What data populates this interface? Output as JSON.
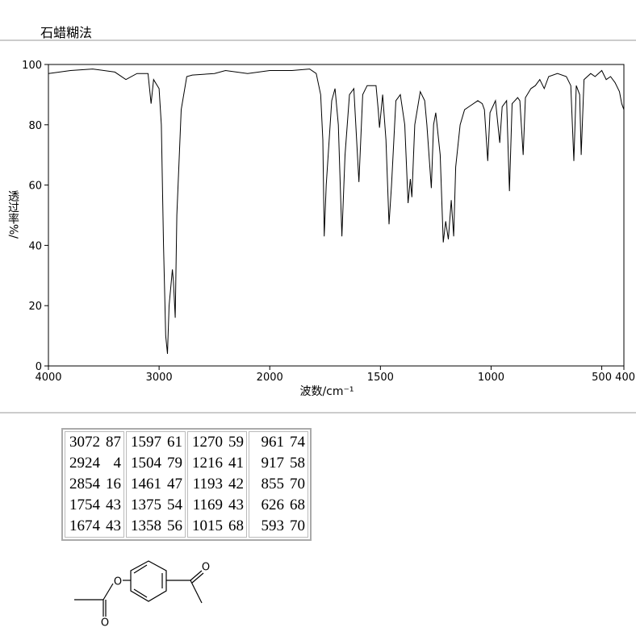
{
  "header": {
    "title": "石蜡糊法"
  },
  "chart_data": {
    "type": "line",
    "x_label": "波数/cm⁻¹",
    "y_label": "透过率%/",
    "xlim": [
      4000,
      400
    ],
    "xticks": [
      4000,
      3000,
      2000,
      1500,
      1000,
      500,
      400
    ],
    "x_scale_change": 2000,
    "ylim": [
      0,
      100
    ],
    "yticks": [
      0,
      20,
      40,
      60,
      80,
      100
    ],
    "x": [
      4000,
      3800,
      3600,
      3400,
      3300,
      3200,
      3100,
      3072,
      3050,
      3000,
      2980,
      2960,
      2940,
      2924,
      2910,
      2880,
      2870,
      2854,
      2840,
      2800,
      2750,
      2700,
      2500,
      2400,
      2200,
      2000,
      1900,
      1820,
      1790,
      1770,
      1760,
      1754,
      1745,
      1720,
      1705,
      1690,
      1674,
      1660,
      1640,
      1620,
      1597,
      1580,
      1560,
      1520,
      1510,
      1504,
      1490,
      1475,
      1461,
      1450,
      1430,
      1410,
      1390,
      1375,
      1365,
      1358,
      1345,
      1320,
      1300,
      1290,
      1270,
      1260,
      1250,
      1230,
      1216,
      1205,
      1193,
      1180,
      1169,
      1160,
      1140,
      1120,
      1100,
      1060,
      1040,
      1030,
      1015,
      1005,
      980,
      961,
      950,
      930,
      917,
      905,
      880,
      870,
      855,
      845,
      820,
      800,
      780,
      760,
      740,
      700,
      660,
      640,
      626,
      615,
      600,
      593,
      580,
      550,
      530,
      500,
      480,
      460,
      440,
      420,
      410,
      400
    ],
    "series": [
      {
        "color": "#000000",
        "values": [
          97,
          98,
          98.5,
          97.5,
          95,
          97,
          97,
          87,
          95,
          92,
          80,
          40,
          10,
          4,
          20,
          32,
          28,
          16,
          50,
          85,
          96,
          96.5,
          97,
          98,
          97,
          98,
          98,
          98.5,
          97,
          90,
          75,
          43,
          60,
          88,
          92,
          80,
          43,
          70,
          90,
          92,
          61,
          90,
          93,
          93,
          85,
          79,
          90,
          75,
          47,
          60,
          88,
          90,
          80,
          54,
          62,
          56,
          80,
          91,
          88,
          80,
          59,
          80,
          84,
          70,
          41,
          48,
          42,
          55,
          43,
          66,
          80,
          85,
          86,
          88,
          87,
          85,
          68,
          84,
          88,
          74,
          86,
          88,
          58,
          87,
          89,
          88,
          70,
          89,
          92,
          93,
          95,
          92,
          96,
          97,
          96,
          93,
          68,
          93,
          90,
          70,
          95,
          97,
          96,
          98,
          95,
          96,
          94,
          91,
          87,
          85
        ]
      }
    ]
  },
  "table": {
    "rows": [
      [
        [
          3072,
          87
        ],
        [
          1597,
          61
        ],
        [
          1270,
          59
        ],
        [
          961,
          74
        ]
      ],
      [
        [
          2924,
          4
        ],
        [
          1504,
          79
        ],
        [
          1216,
          41
        ],
        [
          917,
          58
        ]
      ],
      [
        [
          2854,
          16
        ],
        [
          1461,
          47
        ],
        [
          1193,
          42
        ],
        [
          855,
          70
        ]
      ],
      [
        [
          1754,
          43
        ],
        [
          1375,
          54
        ],
        [
          1169,
          43
        ],
        [
          626,
          68
        ]
      ],
      [
        [
          1674,
          43
        ],
        [
          1358,
          56
        ],
        [
          1015,
          68
        ],
        [
          593,
          70
        ]
      ]
    ]
  },
  "structure": {
    "atoms": [
      "O",
      "O",
      "O"
    ]
  }
}
